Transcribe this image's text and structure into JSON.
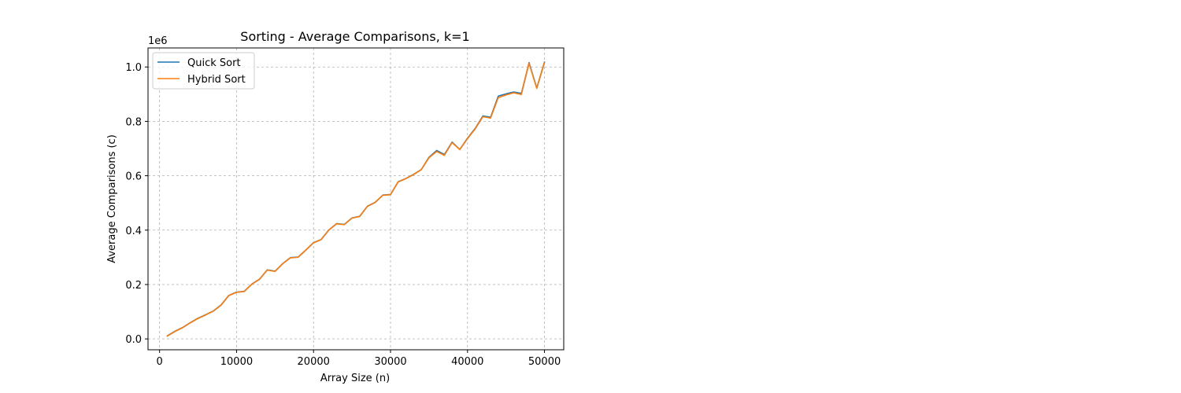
{
  "chart_data": {
    "type": "line",
    "title": "Sorting - Average Comparisons, k=1",
    "xlabel": "Array Size (n)",
    "ylabel": "Average Comparisons (c)",
    "y_offset_label": "1e6",
    "xlim": [
      -1500,
      52500
    ],
    "ylim": [
      -0.04,
      1.07
    ],
    "x_ticks": [
      0,
      10000,
      20000,
      30000,
      40000,
      50000
    ],
    "x_tick_labels": [
      "0",
      "10000",
      "20000",
      "30000",
      "40000",
      "50000"
    ],
    "y_ticks": [
      0.0,
      0.2,
      0.4,
      0.6,
      0.8,
      1.0
    ],
    "y_tick_labels": [
      "0.0",
      "0.2",
      "0.4",
      "0.6",
      "0.8",
      "1.0"
    ],
    "grid": true,
    "legend_position": "top-left",
    "x": [
      1000,
      2000,
      3000,
      4000,
      5000,
      6000,
      7000,
      8000,
      9000,
      10000,
      11000,
      12000,
      13000,
      14000,
      15000,
      16000,
      17000,
      18000,
      19000,
      20000,
      21000,
      22000,
      23000,
      24000,
      25000,
      26000,
      27000,
      28000,
      29000,
      30000,
      31000,
      32000,
      33000,
      34000,
      35000,
      36000,
      37000,
      38000,
      39000,
      40000,
      41000,
      42000,
      43000,
      44000,
      45000,
      46000,
      47000,
      48000,
      49000,
      50000
    ],
    "series": [
      {
        "name": "Quick Sort",
        "color": "#1f77b4",
        "values": [
          0.011,
          0.028,
          0.042,
          0.06,
          0.076,
          0.089,
          0.103,
          0.125,
          0.16,
          0.172,
          0.175,
          0.202,
          0.22,
          0.254,
          0.249,
          0.277,
          0.299,
          0.301,
          0.327,
          0.354,
          0.366,
          0.401,
          0.424,
          0.421,
          0.445,
          0.451,
          0.488,
          0.502,
          0.529,
          0.531,
          0.578,
          0.59,
          0.605,
          0.623,
          0.668,
          0.693,
          0.678,
          0.724,
          0.697,
          0.738,
          0.774,
          0.82,
          0.815,
          0.893,
          0.901,
          0.908,
          0.903,
          1.016,
          0.923,
          1.018
        ]
      },
      {
        "name": "Hybrid Sort",
        "color": "#ff7f0e",
        "values": [
          0.01,
          0.027,
          0.041,
          0.059,
          0.075,
          0.088,
          0.102,
          0.124,
          0.159,
          0.171,
          0.174,
          0.201,
          0.219,
          0.253,
          0.248,
          0.276,
          0.298,
          0.3,
          0.326,
          0.353,
          0.365,
          0.4,
          0.423,
          0.42,
          0.444,
          0.45,
          0.487,
          0.501,
          0.528,
          0.53,
          0.577,
          0.589,
          0.604,
          0.622,
          0.666,
          0.689,
          0.675,
          0.722,
          0.696,
          0.736,
          0.772,
          0.817,
          0.812,
          0.887,
          0.897,
          0.905,
          0.899,
          1.013,
          0.921,
          1.015
        ]
      }
    ]
  }
}
